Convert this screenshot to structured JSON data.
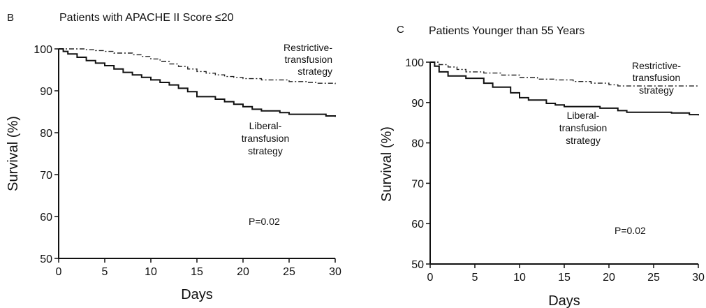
{
  "chart_data": [
    {
      "type": "line",
      "panel_letter": "B",
      "title": "Patients with APACHE II Score ≤20",
      "xlabel": "Days",
      "ylabel": "Survival (%)",
      "xlim": [
        0,
        30
      ],
      "ylim": [
        50,
        100
      ],
      "x_ticks": [
        "0",
        "5",
        "10",
        "15",
        "20",
        "25",
        "30"
      ],
      "y_ticks": [
        "50",
        "60",
        "70",
        "80",
        "90",
        "100"
      ],
      "grid": false,
      "series": [
        {
          "name": "Restrictive-transfusion strategy",
          "label_lines": [
            "Restrictive-",
            "transfusion",
            "strategy"
          ],
          "line_style": "dash-dot",
          "x": [
            0,
            2,
            3,
            4,
            5,
            6,
            8,
            9,
            10,
            11,
            12,
            13,
            14,
            15,
            16,
            17,
            18,
            19,
            20,
            22,
            25,
            27,
            28,
            30
          ],
          "y": [
            100,
            100,
            99.8,
            99.6,
            99.4,
            99.0,
            98.6,
            98.2,
            97.6,
            97.0,
            96.4,
            95.8,
            95.2,
            94.6,
            94.2,
            93.8,
            93.4,
            93.2,
            92.9,
            92.6,
            92.2,
            92.0,
            91.8,
            91.6
          ]
        },
        {
          "name": "Liberal-transfusion strategy",
          "label_lines": [
            "Liberal-",
            "transfusion",
            "strategy"
          ],
          "line_style": "solid",
          "x": [
            0,
            0.5,
            1,
            2,
            3,
            4,
            5,
            6,
            7,
            8,
            9,
            10,
            11,
            12,
            13,
            14,
            15,
            17,
            18,
            19,
            20,
            21,
            22,
            24,
            25,
            29,
            30
          ],
          "y": [
            100,
            99.4,
            98.8,
            98.0,
            97.2,
            96.6,
            96.0,
            95.2,
            94.4,
            93.8,
            93.2,
            92.6,
            92.0,
            91.4,
            90.6,
            89.8,
            88.6,
            88.0,
            87.4,
            86.8,
            86.2,
            85.6,
            85.2,
            84.8,
            84.4,
            84.0,
            83.8
          ]
        }
      ],
      "annotation": "P=0.02"
    },
    {
      "type": "line",
      "panel_letter": "C",
      "title": "Patients Younger than 55 Years",
      "xlabel": "Days",
      "ylabel": "Survival (%)",
      "xlim": [
        0,
        30
      ],
      "ylim": [
        50,
        100
      ],
      "x_ticks": [
        "0",
        "5",
        "10",
        "15",
        "20",
        "25",
        "30"
      ],
      "y_ticks": [
        "50",
        "60",
        "70",
        "80",
        "90",
        "100"
      ],
      "grid": false,
      "series": [
        {
          "name": "Restrictive-transfusion strategy",
          "label_lines": [
            "Restrictive-",
            "transfusion",
            "strategy"
          ],
          "line_style": "dash-dot",
          "x": [
            0,
            1,
            2,
            3,
            4,
            6,
            8,
            10,
            12,
            14,
            16,
            18,
            20,
            21,
            25,
            30
          ],
          "y": [
            100,
            99.4,
            98.8,
            98.2,
            97.6,
            97.3,
            96.8,
            96.2,
            95.8,
            95.6,
            95.2,
            94.8,
            94.4,
            94.1,
            94.1,
            94.1
          ]
        },
        {
          "name": "Liberal-transfusion strategy",
          "label_lines": [
            "Liberal-",
            "transfusion",
            "strategy"
          ],
          "line_style": "solid",
          "x": [
            0,
            0.5,
            1,
            2,
            4,
            6,
            7,
            9,
            10,
            11,
            13,
            14,
            15,
            19,
            21,
            22,
            27,
            29,
            30
          ],
          "y": [
            100,
            99.0,
            97.6,
            96.6,
            96.0,
            94.8,
            93.8,
            92.4,
            91.2,
            90.6,
            89.8,
            89.4,
            89.0,
            88.6,
            88.0,
            87.6,
            87.4,
            87.0,
            86.8
          ]
        }
      ],
      "annotation": "P=0.02"
    }
  ]
}
